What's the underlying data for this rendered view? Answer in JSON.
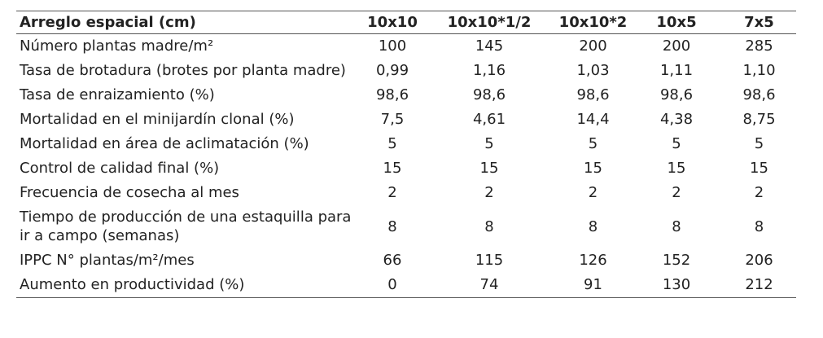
{
  "table": {
    "header": [
      "Arreglo espacial (cm)",
      "10x10",
      "10x10*1/2",
      "10x10*2",
      "10x5",
      "7x5"
    ],
    "rows": [
      [
        "Número plantas madre/m²",
        "100",
        "145",
        "200",
        "200",
        "285"
      ],
      [
        "Tasa de brotadura (brotes por planta madre)",
        "0,99",
        "1,16",
        "1,03",
        "1,11",
        "1,10"
      ],
      [
        "Tasa de enraizamiento (%)",
        "98,6",
        "98,6",
        "98,6",
        "98,6",
        "98,6"
      ],
      [
        "Mortalidad en el minijardín clonal (%)",
        "7,5",
        "4,61",
        "14,4",
        "4,38",
        "8,75"
      ],
      [
        "Mortalidad en área de aclimatación (%)",
        "5",
        "5",
        "5",
        "5",
        "5"
      ],
      [
        "Control de calidad final (%)",
        "15",
        "15",
        "15",
        "15",
        "15"
      ],
      [
        "Frecuencia de cosecha al mes",
        "2",
        "2",
        "2",
        "2",
        "2"
      ],
      [
        "Tiempo de producción de una estaquilla para ir a campo (semanas)",
        "8",
        "8",
        "8",
        "8",
        "8"
      ],
      [
        "IPPC N° plantas/m²/mes",
        "66",
        "115",
        "126",
        "152",
        "206"
      ],
      [
        "Aumento en productividad (%)",
        "0",
        "74",
        "91",
        "130",
        "212"
      ]
    ]
  }
}
